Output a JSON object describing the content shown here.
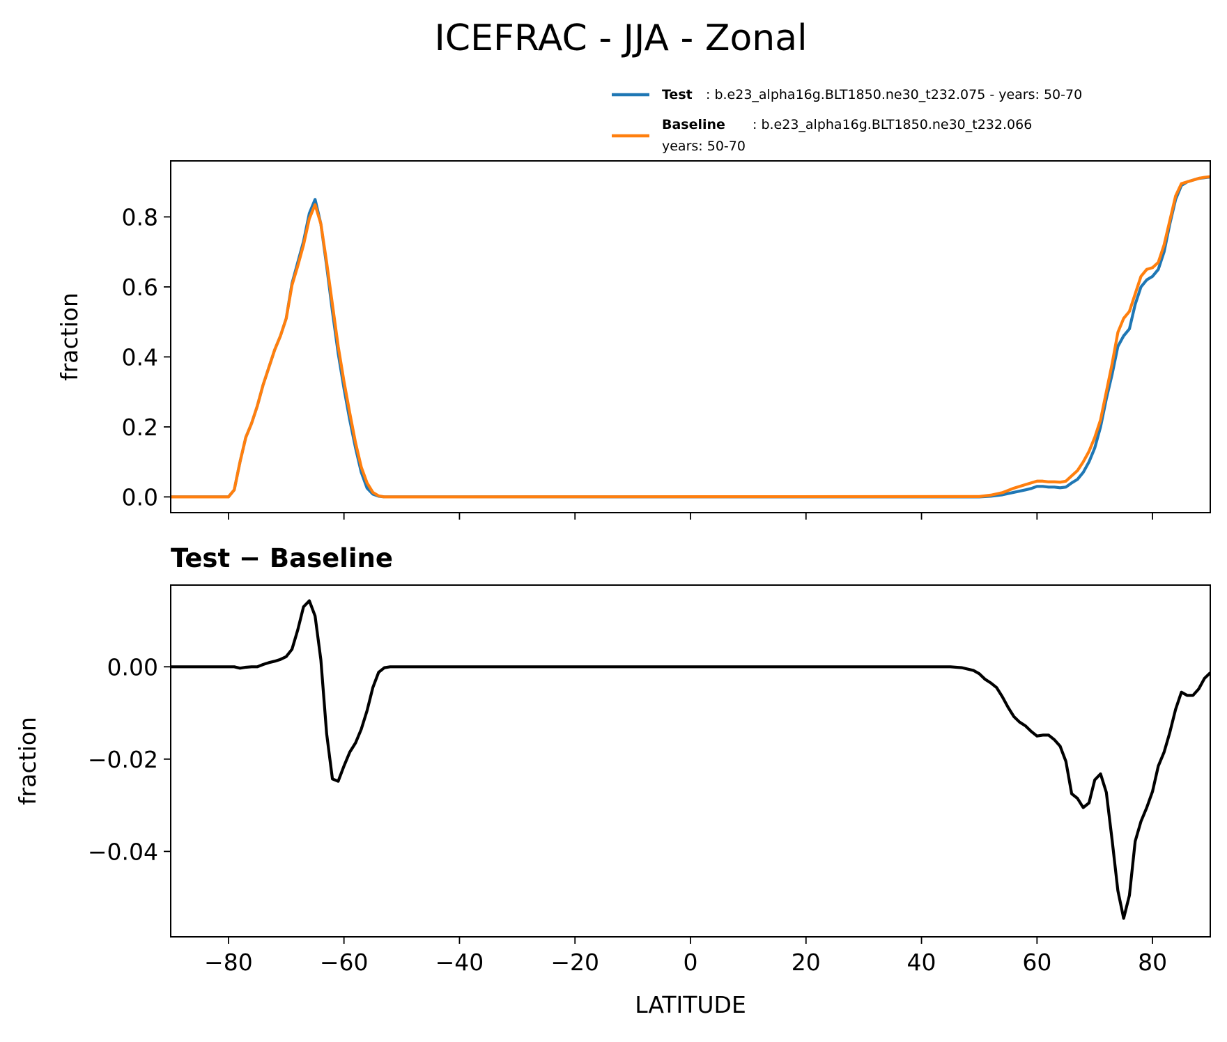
{
  "figure": {
    "title": "ICEFRAC - JJA - Zonal"
  },
  "legend": {
    "test_name": "Test",
    "test_desc": ": b.e23_alpha16g.BLT1850.ne30_t232.075 - years: 50-70",
    "baseline_name": "Baseline",
    "baseline_desc": ": b.e23_alpha16g.BLT1850.ne30_t232.066",
    "baseline_desc2": "years: 50-70"
  },
  "colors": {
    "test": "#1f77b4",
    "baseline": "#ff7f0e",
    "diff": "#000000"
  },
  "chart_data": [
    {
      "type": "line",
      "title": "",
      "xlabel": "",
      "ylabel": "fraction",
      "xlim": [
        -90,
        90
      ],
      "ylim": [
        -0.045,
        0.96
      ],
      "yticks": [
        0.0,
        0.2,
        0.4,
        0.6,
        0.8
      ],
      "ytick_labels": [
        "0.0",
        "0.2",
        "0.4",
        "0.6",
        "0.8"
      ],
      "xticks": [
        -80,
        -60,
        -40,
        -20,
        0,
        20,
        40,
        60,
        80
      ],
      "grid": false,
      "legend_position": "top-right",
      "series": [
        {
          "name": "Test",
          "color": "#1f77b4",
          "x": [
            -90,
            -80,
            -79,
            -78,
            -77,
            -76,
            -75,
            -74,
            -73,
            -72,
            -71,
            -70,
            -69,
            -68,
            -67,
            -66,
            -65,
            -64,
            -63,
            -62,
            -61,
            -60,
            -59,
            -58,
            -57,
            -56,
            -55,
            -54,
            -53,
            50,
            52,
            54,
            56,
            58,
            59,
            60,
            61,
            62,
            63,
            64,
            65,
            66,
            67,
            68,
            69,
            70,
            71,
            72,
            73,
            74,
            75,
            76,
            77,
            78,
            79,
            80,
            81,
            82,
            83,
            84,
            85,
            86,
            87,
            88,
            89,
            90
          ],
          "y": [
            0,
            0,
            0.02,
            0.1,
            0.17,
            0.21,
            0.26,
            0.32,
            0.37,
            0.42,
            0.46,
            0.51,
            0.61,
            0.67,
            0.73,
            0.81,
            0.85,
            0.78,
            0.66,
            0.53,
            0.41,
            0.31,
            0.22,
            0.14,
            0.07,
            0.025,
            0.008,
            0.002,
            0,
            0,
            0.002,
            0.006,
            0.013,
            0.02,
            0.024,
            0.03,
            0.03,
            0.028,
            0.028,
            0.026,
            0.028,
            0.04,
            0.05,
            0.07,
            0.1,
            0.14,
            0.2,
            0.28,
            0.35,
            0.43,
            0.46,
            0.48,
            0.55,
            0.6,
            0.62,
            0.63,
            0.65,
            0.7,
            0.78,
            0.85,
            0.89,
            0.9,
            0.905,
            0.91,
            0.912,
            0.914
          ]
        },
        {
          "name": "Baseline",
          "color": "#ff7f0e",
          "x": [
            -90,
            -80,
            -79,
            -78,
            -77,
            -76,
            -75,
            -74,
            -73,
            -72,
            -71,
            -70,
            -69,
            -68,
            -67,
            -66,
            -65,
            -64,
            -63,
            -62,
            -61,
            -60,
            -59,
            -58,
            -57,
            -56,
            -55,
            -54,
            -53,
            50,
            52,
            54,
            56,
            58,
            59,
            60,
            61,
            62,
            63,
            64,
            65,
            66,
            67,
            68,
            69,
            70,
            71,
            72,
            73,
            74,
            75,
            76,
            77,
            78,
            79,
            80,
            81,
            82,
            83,
            84,
            85,
            86,
            87,
            88,
            89,
            90
          ],
          "y": [
            0,
            0,
            0.02,
            0.1,
            0.17,
            0.21,
            0.26,
            0.32,
            0.37,
            0.42,
            0.46,
            0.51,
            0.605,
            0.66,
            0.72,
            0.795,
            0.835,
            0.78,
            0.67,
            0.55,
            0.43,
            0.33,
            0.24,
            0.155,
            0.085,
            0.04,
            0.013,
            0.003,
            0,
            0.001,
            0.005,
            0.012,
            0.025,
            0.035,
            0.04,
            0.045,
            0.045,
            0.043,
            0.043,
            0.042,
            0.045,
            0.06,
            0.075,
            0.1,
            0.13,
            0.17,
            0.22,
            0.3,
            0.38,
            0.47,
            0.51,
            0.53,
            0.58,
            0.63,
            0.65,
            0.655,
            0.67,
            0.72,
            0.79,
            0.86,
            0.895,
            0.9,
            0.905,
            0.91,
            0.913,
            0.915
          ]
        }
      ]
    },
    {
      "type": "line",
      "title": "Test − Baseline",
      "xlabel": "LATITUDE",
      "ylabel": "fraction",
      "xlim": [
        -90,
        90
      ],
      "ylim": [
        -0.0585,
        0.0177
      ],
      "yticks": [
        -0.04,
        -0.02,
        0.0
      ],
      "ytick_labels": [
        "−0.04",
        "−0.02",
        "0.00"
      ],
      "xticks": [
        -80,
        -60,
        -40,
        -20,
        0,
        20,
        40,
        60,
        80
      ],
      "xtick_labels": [
        "−80",
        "−60",
        "−40",
        "−20",
        "0",
        "20",
        "40",
        "60",
        "80"
      ],
      "grid": false,
      "series": [
        {
          "color": "#000000",
          "x": [
            -90,
            -79,
            -78,
            -77,
            -76,
            -75,
            -74,
            -73,
            -72,
            -71,
            -70,
            -69,
            -68,
            -67,
            -66,
            -65,
            -64,
            -63,
            -62,
            -61,
            -60,
            -59,
            -58,
            -57,
            -56,
            -55,
            -54,
            -53,
            -52,
            45,
            47,
            49,
            50,
            51,
            52,
            53,
            54,
            55,
            56,
            57,
            58,
            59,
            60,
            61,
            62,
            63,
            64,
            65,
            66,
            67,
            68,
            69,
            70,
            71,
            72,
            73,
            74,
            75,
            76,
            77,
            78,
            79,
            80,
            81,
            82,
            83,
            84,
            85,
            86,
            87,
            88,
            89,
            90
          ],
          "y": [
            0,
            0,
            -0.0003,
            -0.0001,
            0,
            0,
            0.0005,
            0.0009,
            0.0012,
            0.0016,
            0.0022,
            0.0038,
            0.008,
            0.013,
            0.0143,
            0.011,
            0.0015,
            -0.0145,
            -0.0243,
            -0.0248,
            -0.0215,
            -0.0185,
            -0.0165,
            -0.0135,
            -0.0095,
            -0.0045,
            -0.0012,
            -0.0002,
            0,
            0,
            -0.0002,
            -0.0008,
            -0.0015,
            -0.0027,
            -0.0035,
            -0.0045,
            -0.0065,
            -0.0088,
            -0.0108,
            -0.012,
            -0.0128,
            -0.014,
            -0.015,
            -0.0148,
            -0.0148,
            -0.0158,
            -0.0172,
            -0.0205,
            -0.0275,
            -0.0285,
            -0.0305,
            -0.0295,
            -0.0245,
            -0.0232,
            -0.0272,
            -0.0375,
            -0.0485,
            -0.0545,
            -0.0495,
            -0.0378,
            -0.0335,
            -0.0305,
            -0.027,
            -0.0215,
            -0.0185,
            -0.0142,
            -0.0092,
            -0.0055,
            -0.0062,
            -0.0062,
            -0.0048,
            -0.0025,
            -0.0013
          ]
        }
      ]
    }
  ]
}
